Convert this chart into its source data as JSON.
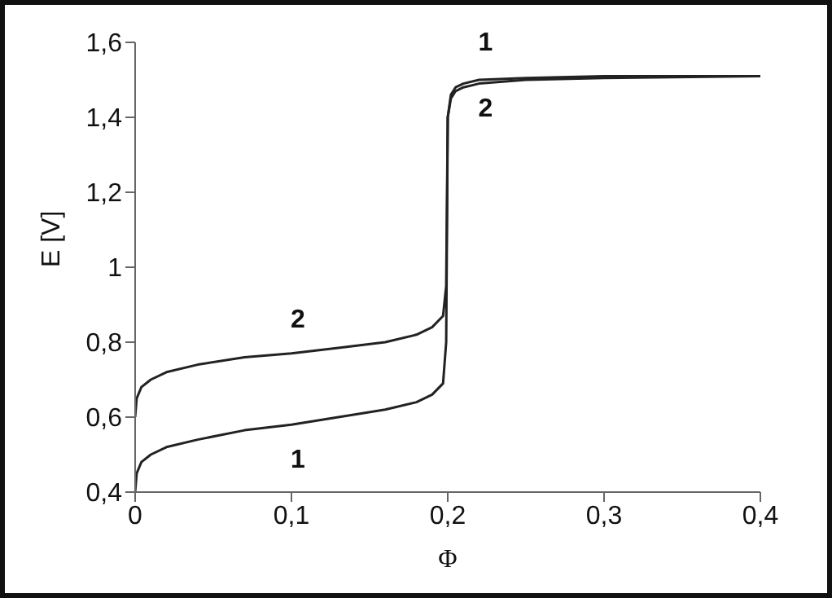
{
  "chart_data": {
    "type": "line",
    "xlabel": "Φ",
    "ylabel": "E [V]",
    "xlim": [
      0,
      0.4
    ],
    "xticks": [
      {
        "value": 0,
        "label": "0"
      },
      {
        "value": 0.1,
        "label": "0,1"
      },
      {
        "value": 0.2,
        "label": "0,2"
      },
      {
        "value": 0.3,
        "label": "0,3"
      },
      {
        "value": 0.4,
        "label": "0,4"
      }
    ],
    "ylim": [
      0.4,
      1.6
    ],
    "yticks": [
      {
        "value": 0.4,
        "label": "0,4"
      },
      {
        "value": 0.6,
        "label": "0,6"
      },
      {
        "value": 0.8,
        "label": "0,8"
      },
      {
        "value": 1,
        "label": "1"
      },
      {
        "value": 1.2,
        "label": "1,2"
      },
      {
        "value": 1.4,
        "label": "1,4"
      },
      {
        "value": 1.6,
        "label": "1,6"
      }
    ],
    "grid": false,
    "legend": false,
    "marker": "none",
    "line_style": "solid",
    "series": [
      {
        "name": "1",
        "color": "#222222",
        "x": [
          0,
          0.001,
          0.004,
          0.01,
          0.02,
          0.04,
          0.07,
          0.1,
          0.13,
          0.16,
          0.18,
          0.19,
          0.197,
          0.199,
          0.2,
          0.202,
          0.205,
          0.21,
          0.22,
          0.25,
          0.3,
          0.4
        ],
        "values": [
          0.4,
          0.45,
          0.48,
          0.5,
          0.52,
          0.54,
          0.565,
          0.58,
          0.6,
          0.62,
          0.64,
          0.66,
          0.69,
          0.8,
          1.4,
          1.46,
          1.48,
          1.49,
          1.5,
          1.505,
          1.51,
          1.51
        ]
      },
      {
        "name": "2",
        "color": "#222222",
        "x": [
          0,
          0.001,
          0.004,
          0.01,
          0.02,
          0.04,
          0.07,
          0.1,
          0.13,
          0.16,
          0.18,
          0.19,
          0.197,
          0.199,
          0.2,
          0.202,
          0.205,
          0.21,
          0.22,
          0.25,
          0.3,
          0.4
        ],
        "values": [
          0.6,
          0.65,
          0.68,
          0.7,
          0.72,
          0.74,
          0.76,
          0.77,
          0.785,
          0.8,
          0.82,
          0.84,
          0.87,
          0.95,
          1.4,
          1.45,
          1.47,
          1.48,
          1.49,
          1.5,
          1.505,
          1.51
        ]
      }
    ]
  }
}
